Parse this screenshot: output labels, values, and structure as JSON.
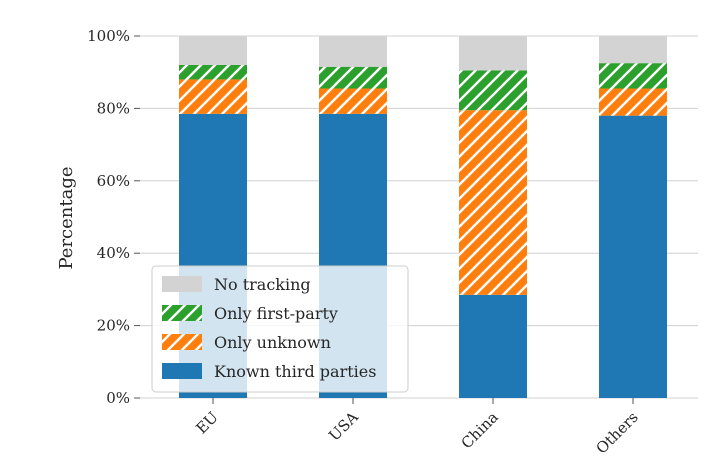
{
  "chart_data": {
    "type": "bar",
    "stacked": true,
    "categories": [
      "EU",
      "USA",
      "China",
      "Others"
    ],
    "ylabel": "Percentage",
    "ylim": [
      0,
      100
    ],
    "yticks": [
      "0%",
      "20%",
      "40%",
      "60%",
      "80%",
      "100%"
    ],
    "grid": true,
    "legend_position": "lower-left",
    "series": [
      {
        "name": "Known third parties",
        "values": [
          78.5,
          78.5,
          28.5,
          78.0
        ],
        "color": "#1f77b4",
        "hatch": false
      },
      {
        "name": "Only unknown",
        "values": [
          9.5,
          7.0,
          51.0,
          7.5
        ],
        "color": "#ff7f0e",
        "hatch": true
      },
      {
        "name": "Only first-party",
        "values": [
          4.0,
          6.0,
          11.0,
          7.0
        ],
        "color": "#2ca02c",
        "hatch": true
      },
      {
        "name": "No tracking",
        "values": [
          8.0,
          8.5,
          9.5,
          7.5
        ],
        "color": "#d3d3d3",
        "hatch": false
      }
    ]
  }
}
